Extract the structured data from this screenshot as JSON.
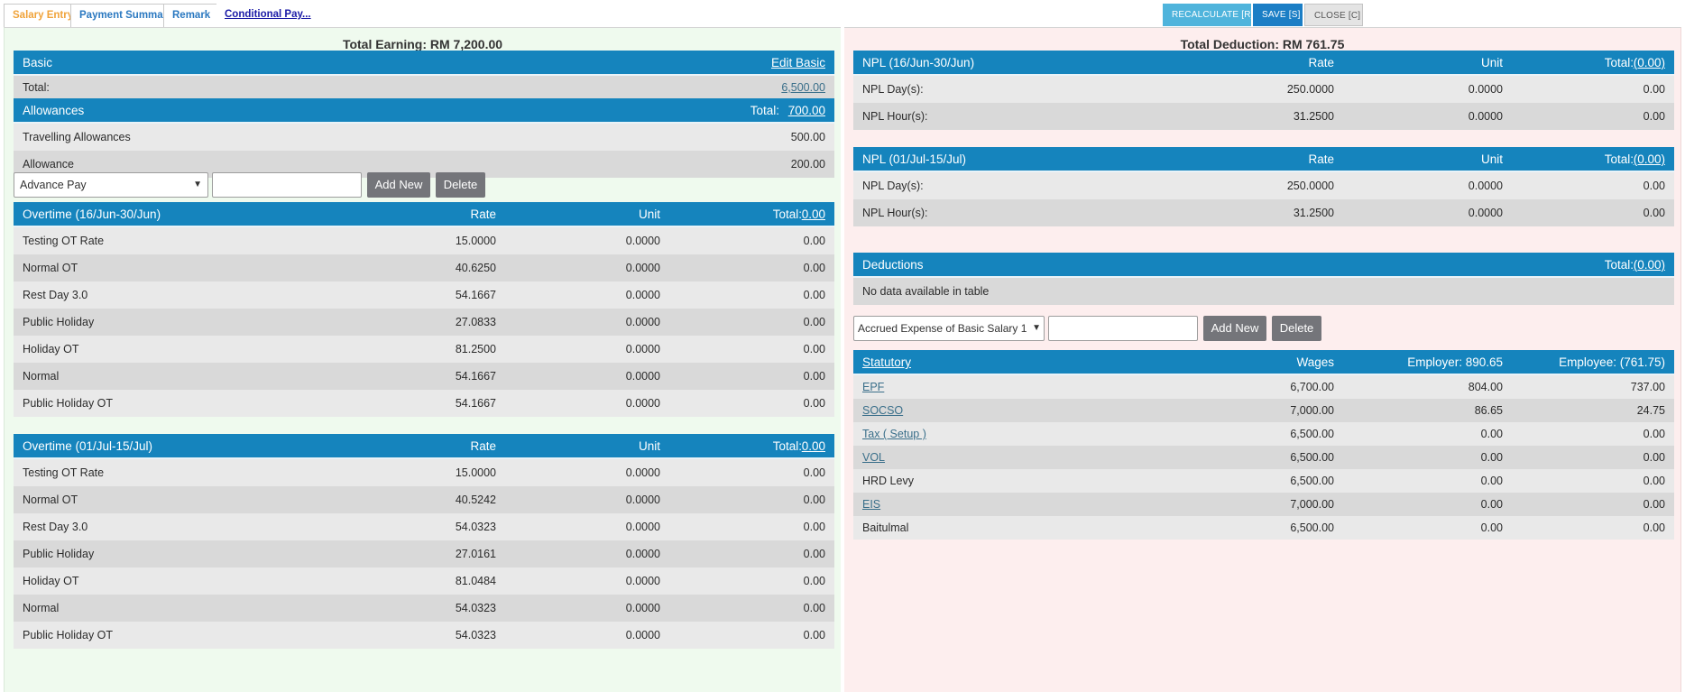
{
  "tabs": {
    "salary_entry": "Salary Entry",
    "payment_summary": "Payment Summary",
    "remark": "Remark",
    "conditional_pay": "Conditional Pay..."
  },
  "toolbar": {
    "recalculate": "RECALCULATE [R]",
    "save": "SAVE [S]",
    "close": "CLOSE [C]"
  },
  "earning": {
    "title": "Total Earning: RM 7,200.00",
    "basic": {
      "header": "Basic",
      "edit_link": "Edit Basic",
      "total_label": "Total:",
      "total_value": "6,500.00"
    },
    "allowances": {
      "header": "Allowances",
      "total_label": "Total:",
      "total_value": "700.00",
      "rows": [
        {
          "label": "Travelling Allowances",
          "value": "500.00"
        },
        {
          "label": "Allowance",
          "value": "200.00"
        }
      ]
    },
    "add_controls": {
      "select_value": "Advance Pay",
      "add_label": "Add New",
      "delete_label": "Delete"
    },
    "overtime_1": {
      "header": "Overtime (16/Jun-30/Jun)",
      "rate_label": "Rate",
      "unit_label": "Unit",
      "total_label": "Total:",
      "total_value": "0.00",
      "rows": [
        {
          "label": "Testing OT Rate",
          "rate": "15.0000",
          "unit": "0.0000",
          "total": "0.00"
        },
        {
          "label": "Normal OT",
          "rate": "40.6250",
          "unit": "0.0000",
          "total": "0.00"
        },
        {
          "label": "Rest Day 3.0",
          "rate": "54.1667",
          "unit": "0.0000",
          "total": "0.00"
        },
        {
          "label": "Public Holiday",
          "rate": "27.0833",
          "unit": "0.0000",
          "total": "0.00"
        },
        {
          "label": "Holiday OT",
          "rate": "81.2500",
          "unit": "0.0000",
          "total": "0.00"
        },
        {
          "label": "Normal",
          "rate": "54.1667",
          "unit": "0.0000",
          "total": "0.00"
        },
        {
          "label": "Public Holiday OT",
          "rate": "54.1667",
          "unit": "0.0000",
          "total": "0.00"
        }
      ]
    },
    "overtime_2": {
      "header": "Overtime (01/Jul-15/Jul)",
      "rate_label": "Rate",
      "unit_label": "Unit",
      "total_label": "Total:",
      "total_value": "0.00",
      "rows": [
        {
          "label": "Testing OT Rate",
          "rate": "15.0000",
          "unit": "0.0000",
          "total": "0.00"
        },
        {
          "label": "Normal OT",
          "rate": "40.5242",
          "unit": "0.0000",
          "total": "0.00"
        },
        {
          "label": "Rest Day 3.0",
          "rate": "54.0323",
          "unit": "0.0000",
          "total": "0.00"
        },
        {
          "label": "Public Holiday",
          "rate": "27.0161",
          "unit": "0.0000",
          "total": "0.00"
        },
        {
          "label": "Holiday OT",
          "rate": "81.0484",
          "unit": "0.0000",
          "total": "0.00"
        },
        {
          "label": "Normal",
          "rate": "54.0323",
          "unit": "0.0000",
          "total": "0.00"
        },
        {
          "label": "Public Holiday OT",
          "rate": "54.0323",
          "unit": "0.0000",
          "total": "0.00"
        }
      ]
    }
  },
  "deduction": {
    "title": "Total Deduction: RM 761.75",
    "npl_1": {
      "header": "NPL (16/Jun-30/Jun)",
      "rate_label": "Rate",
      "unit_label": "Unit",
      "total_label": "Total:",
      "total_value": "(0.00)",
      "rows": [
        {
          "label": "NPL Day(s):",
          "rate": "250.0000",
          "unit": "0.0000",
          "total": "0.00"
        },
        {
          "label": "NPL Hour(s):",
          "rate": "31.2500",
          "unit": "0.0000",
          "total": "0.00"
        }
      ]
    },
    "npl_2": {
      "header": "NPL (01/Jul-15/Jul)",
      "rate_label": "Rate",
      "unit_label": "Unit",
      "total_label": "Total:",
      "total_value": "(0.00)",
      "rows": [
        {
          "label": "NPL Day(s):",
          "rate": "250.0000",
          "unit": "0.0000",
          "total": "0.00"
        },
        {
          "label": "NPL Hour(s):",
          "rate": "31.2500",
          "unit": "0.0000",
          "total": "0.00"
        }
      ]
    },
    "deductions": {
      "header": "Deductions",
      "total_label": "Total:",
      "total_value": "(0.00)",
      "empty_text": "No data available in table"
    },
    "add_controls": {
      "select_value": "Accrued Expense of Basic Salary 1",
      "add_label": "Add New",
      "delete_label": "Delete"
    },
    "statutory": {
      "header": "Statutory",
      "wages_label": "Wages",
      "employer_label": "Employer: 890.65",
      "employee_label": "Employee: (761.75)",
      "rows": [
        {
          "label": "EPF",
          "wages": "6,700.00",
          "employer": "804.00",
          "employee": "737.00"
        },
        {
          "label": "SOCSO",
          "wages": "7,000.00",
          "employer": "86.65",
          "employee": "24.75"
        },
        {
          "label": "Tax ( Setup )",
          "wages": "6,500.00",
          "employer": "0.00",
          "employee": "0.00"
        },
        {
          "label": "VOL",
          "wages": "6,500.00",
          "employer": "0.00",
          "employee": "0.00"
        },
        {
          "label": "HRD Levy",
          "wages": "6,500.00",
          "employer": "0.00",
          "employee": "0.00"
        },
        {
          "label": "EIS",
          "wages": "7,000.00",
          "employer": "0.00",
          "employee": "0.00"
        },
        {
          "label": "Baitulmal",
          "wages": "6,500.00",
          "employer": "0.00",
          "employee": "0.00"
        }
      ]
    }
  }
}
